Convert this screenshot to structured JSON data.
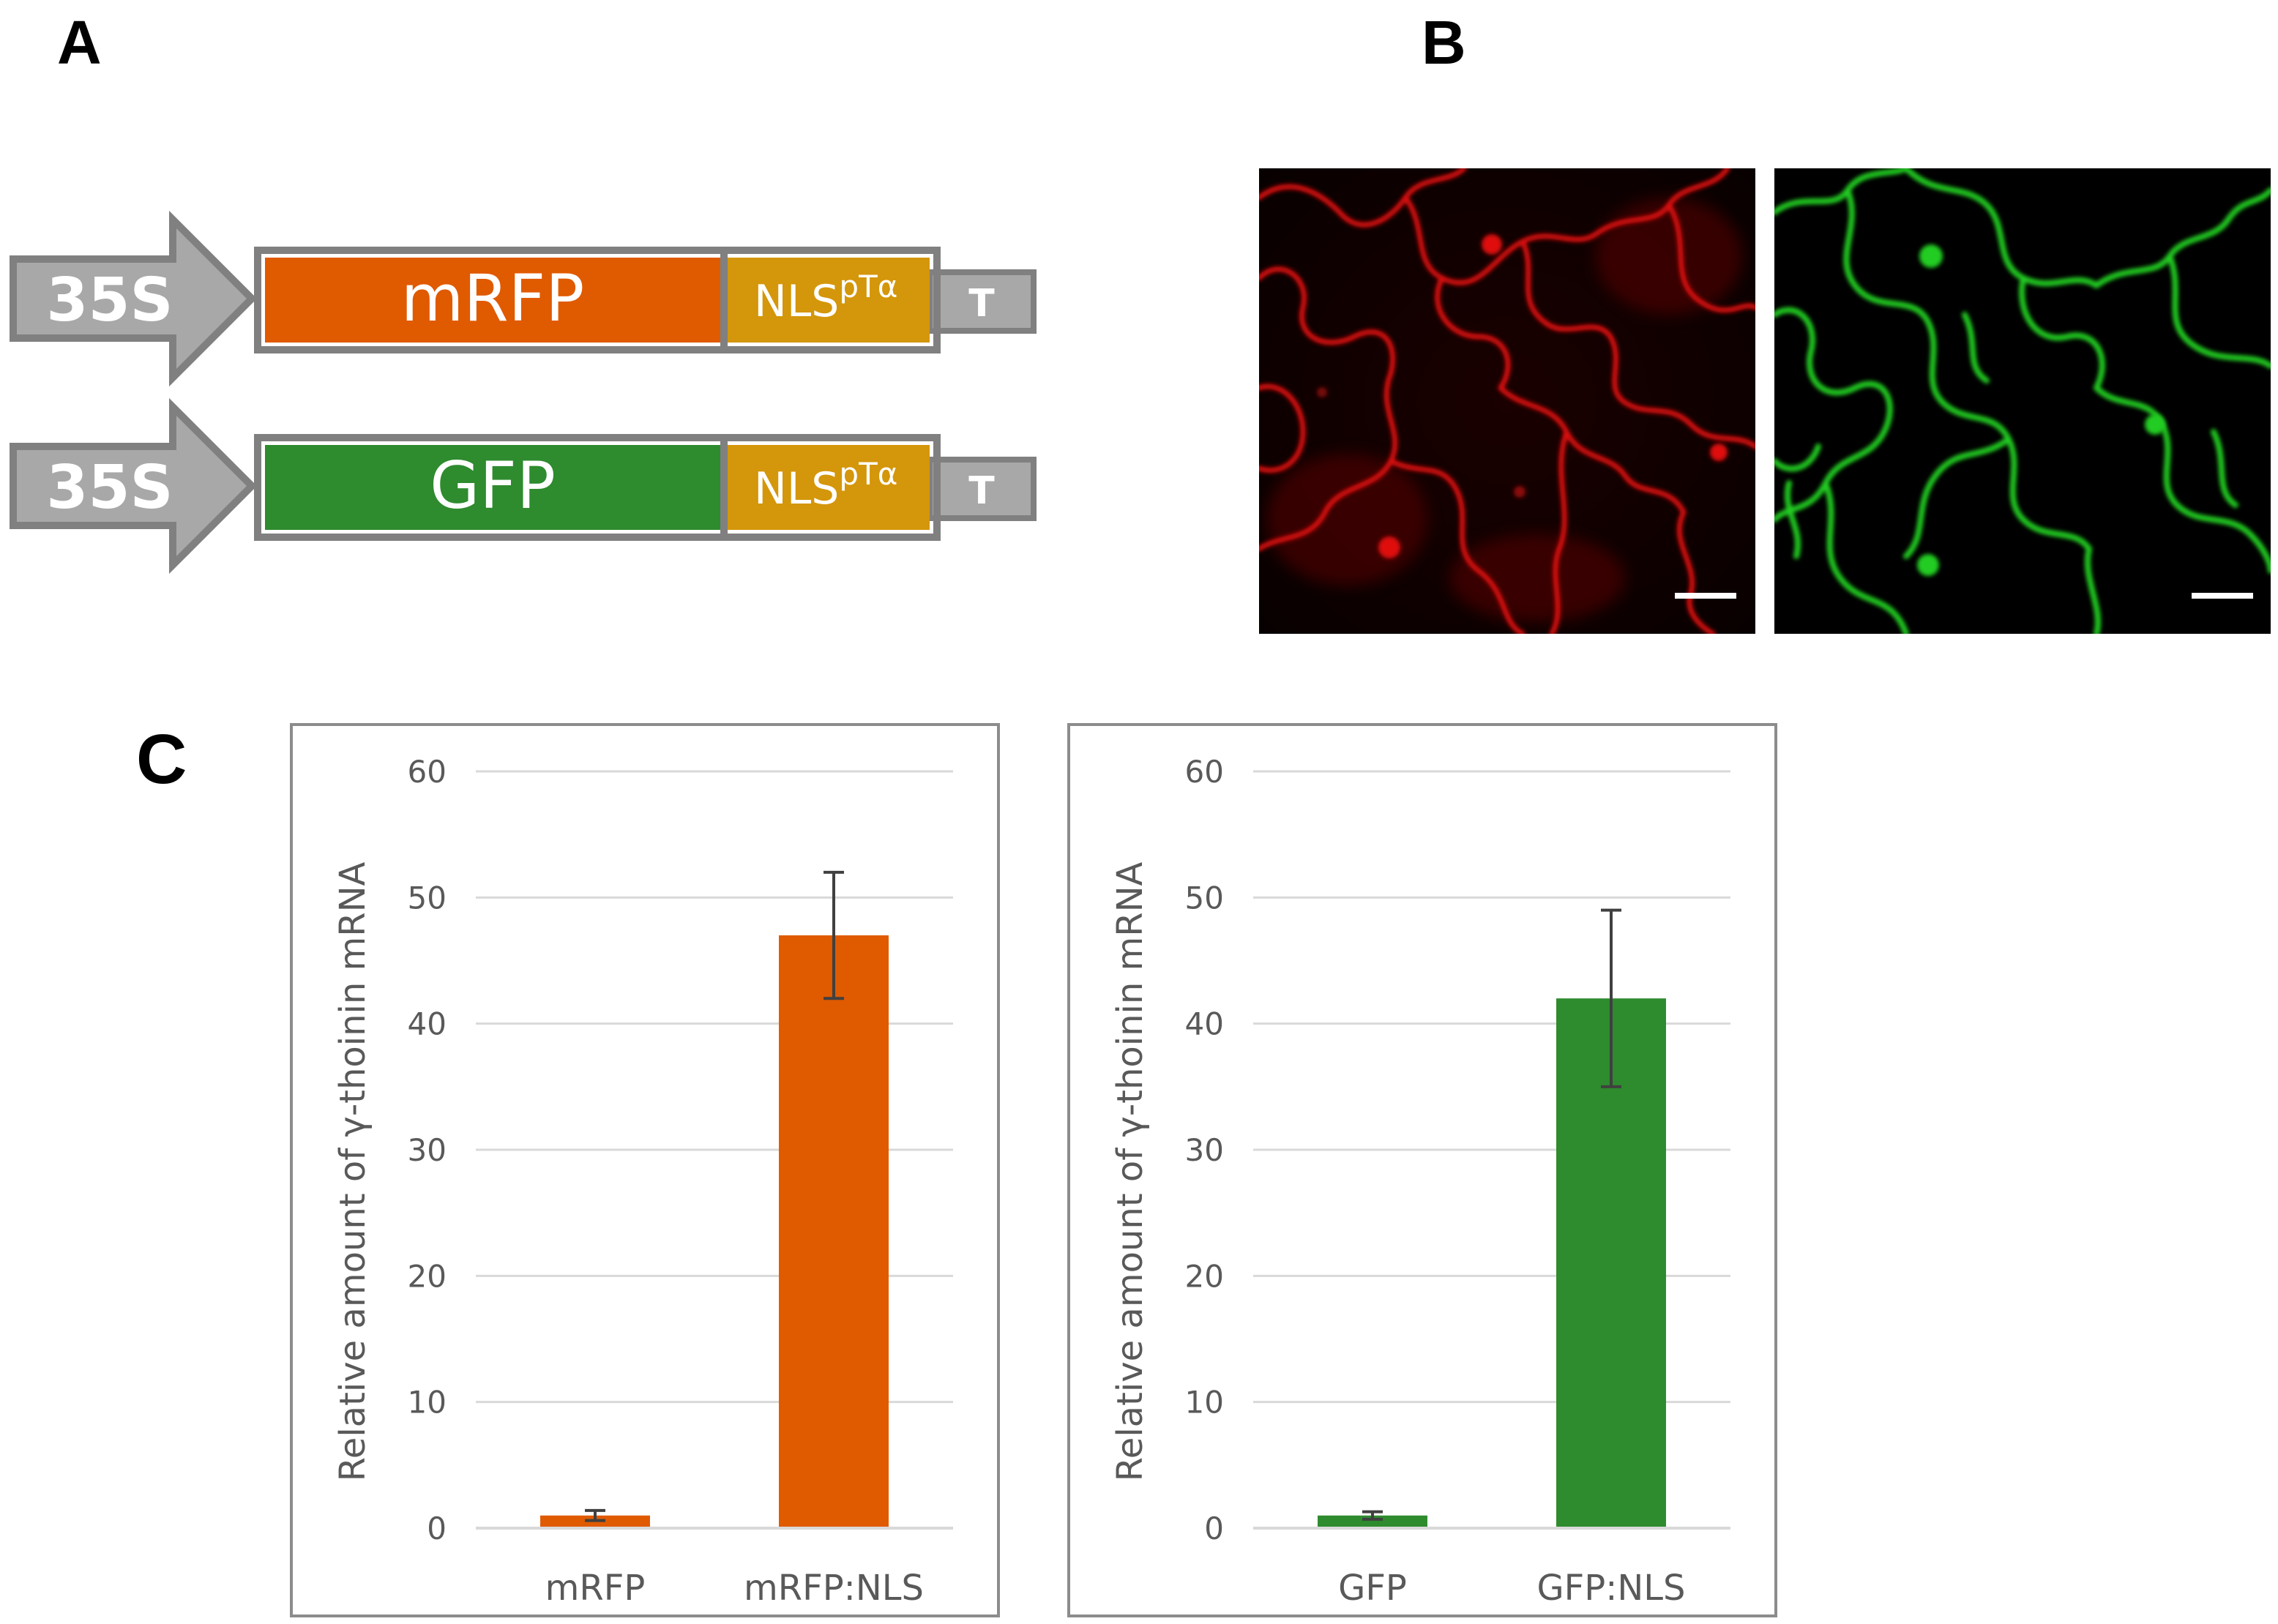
{
  "panels": {
    "a": "A",
    "b": "B",
    "c": "C"
  },
  "constructs": [
    {
      "promoter": "35S",
      "reporter": "mRFP",
      "nls_base": "NLS",
      "nls_sup": "pTα",
      "terminator": "T",
      "reporter_color": "#e05a00"
    },
    {
      "promoter": "35S",
      "reporter": "GFP",
      "nls_base": "NLS",
      "nls_sup": "pTα",
      "terminator": "T",
      "reporter_color": "#2e8b2e"
    }
  ],
  "colors": {
    "promoter_fill": "#a8a8a8",
    "outline": "#808080",
    "nls_fill": "#d4960a",
    "terminator_fill": "#a8a8a8"
  },
  "microscopy": [
    {
      "channel": "red",
      "color": "#e01010"
    },
    {
      "channel": "green",
      "color": "#22cc22"
    }
  ],
  "chart_data": [
    {
      "type": "bar",
      "categories": [
        "mRFP",
        "mRFP:NLS"
      ],
      "values": [
        1,
        47
      ],
      "errors": [
        0.4,
        5
      ],
      "ylabel": "Relative amount of γ-thoinin mRNA",
      "ylim": [
        0,
        60
      ],
      "yticks": [
        0,
        10,
        20,
        30,
        40,
        50,
        60
      ],
      "bar_color": "#e05a00",
      "grid": true
    },
    {
      "type": "bar",
      "categories": [
        "GFP",
        "GFP:NLS"
      ],
      "values": [
        1,
        42
      ],
      "errors": [
        0.3,
        7
      ],
      "ylabel": "Relative amount of γ-thoinin mRNA",
      "ylim": [
        0,
        60
      ],
      "yticks": [
        0,
        10,
        20,
        30,
        40,
        50,
        60
      ],
      "bar_color": "#2e8b2e",
      "grid": true
    }
  ]
}
